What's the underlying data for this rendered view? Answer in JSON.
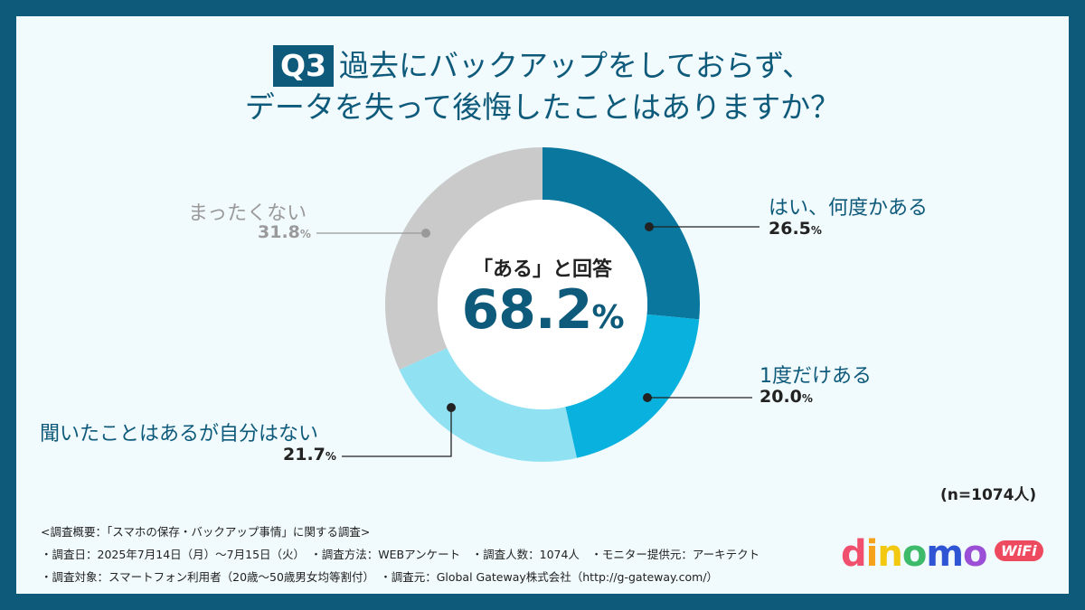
{
  "title": {
    "badge": "Q3",
    "line1": "過去にバックアップをしておらず、",
    "line2": "データを失って後悔したことはありますか？"
  },
  "center": {
    "caption": "「ある」と回答",
    "value": "68.2",
    "unit": "%"
  },
  "chart_data": {
    "type": "pie",
    "donut": true,
    "categories": [
      "はい、何度かある",
      "1度だけある",
      "聞いたことはあるが自分はない",
      "まったくない"
    ],
    "values": [
      26.5,
      20.0,
      21.7,
      31.8
    ],
    "labels": [
      "26.5",
      "20.0",
      "21.7",
      "31.8"
    ],
    "unit": "%",
    "colors": [
      "#0a779f",
      "#09b1de",
      "#90e2f3",
      "#cacaca"
    ],
    "label_colors": [
      "#0e5a7b",
      "#0e5a7b",
      "#0e5a7b",
      "#9a9a9a"
    ]
  },
  "sample": "(n=1074人)",
  "footer": {
    "line1": "<調査概要：「スマホの保存・バックアップ事情」に関する調査>",
    "line2": "・調査日：2025年7月14日（月）〜7月15日（火）　・調査方法：WEBアンケート　・調査人数：1074人　・モニター提供元：アーキテクト",
    "line3": "・調査対象：スマートフォン利用者（20歳〜50歳男女均等割付）　・調査元：Global Gateway株式会社（http://g-gateway.com/）"
  },
  "logo": {
    "text": "dinomo",
    "badge": "WiFi",
    "letter_colors": [
      "#f0506e",
      "#f7a21b",
      "#f2c811",
      "#3dbb6a",
      "#2f55d4",
      "#9b4fd6"
    ],
    "badge_color": "#ee4a5f"
  }
}
